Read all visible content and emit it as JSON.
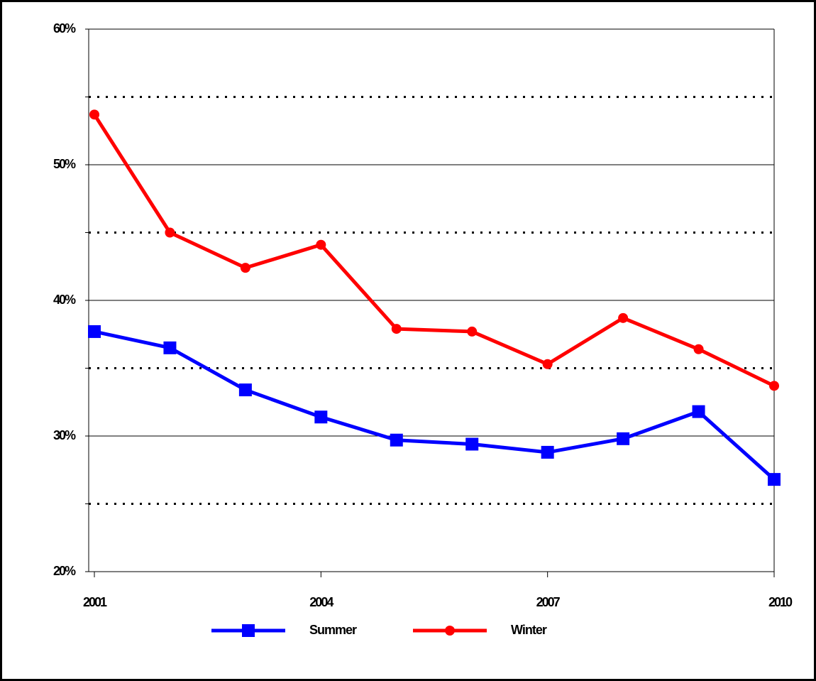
{
  "chart_data": {
    "type": "line",
    "x": [
      2001,
      2002,
      2003,
      2004,
      2005,
      2006,
      2007,
      2008,
      2009,
      2010
    ],
    "xlim": [
      2001,
      2010
    ],
    "xticks": [
      2001,
      2004,
      2007,
      2010
    ],
    "ylim": [
      20,
      60
    ],
    "yticks": [
      {
        "value": 20,
        "label": "20%"
      },
      {
        "value": 30,
        "label": "30%"
      },
      {
        "value": 40,
        "label": "40%"
      },
      {
        "value": 50,
        "label": "50%"
      },
      {
        "value": 60,
        "label": "60%"
      }
    ],
    "minor_yticks": [
      25,
      35,
      45,
      55
    ],
    "grid": true,
    "legend": "bottom",
    "series": [
      {
        "name": "Summer",
        "color": "#0000ff",
        "marker": "square",
        "values": [
          37.7,
          36.5,
          33.4,
          31.4,
          29.7,
          29.4,
          28.8,
          29.8,
          31.8,
          26.8
        ]
      },
      {
        "name": "Winter",
        "color": "#ff0000",
        "marker": "circle",
        "values": [
          53.7,
          45.0,
          42.4,
          44.1,
          37.9,
          37.7,
          35.3,
          38.7,
          36.4,
          33.7
        ]
      }
    ]
  }
}
